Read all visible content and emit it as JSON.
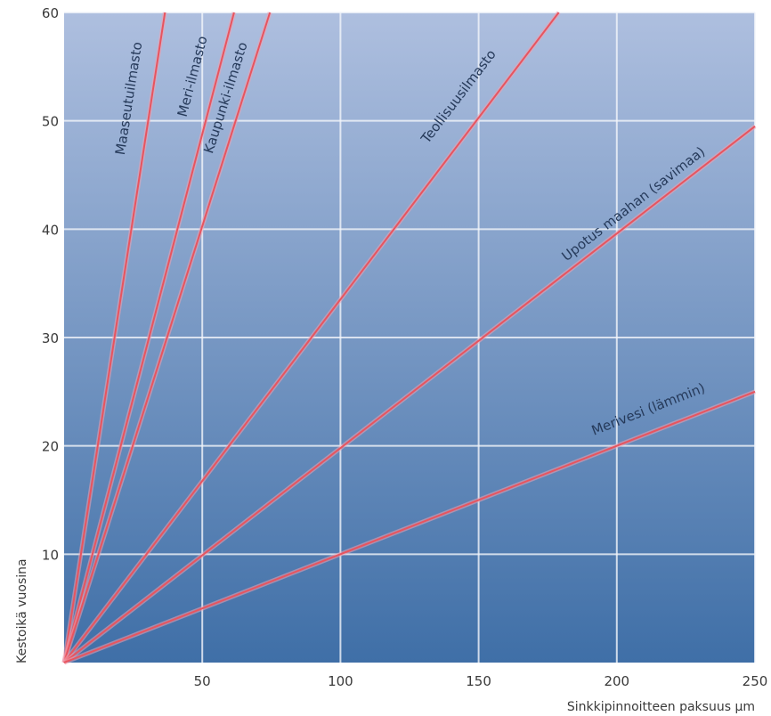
{
  "chart_data": {
    "type": "line",
    "title": "",
    "xlabel": "Sinkkipinnoitteen paksuus µm",
    "ylabel": "Kestoikä vuosina",
    "xlim": [
      0,
      250
    ],
    "ylim": [
      0,
      60
    ],
    "x_ticks": [
      50,
      100,
      150,
      200,
      250
    ],
    "y_ticks": [
      10,
      20,
      30,
      40,
      50,
      60
    ],
    "x_tick_labels": [
      "50",
      "100",
      "150",
      "200",
      "250"
    ],
    "y_tick_labels": [
      "10",
      "20",
      "30",
      "40",
      "50",
      "60"
    ],
    "grid": true,
    "colors": {
      "plot_top": "#aebfdf",
      "plot_bottom": "#3f6fa7",
      "grid": "#f2f5fa",
      "line": "#e8545e",
      "line_glow": "#f0a0b0"
    },
    "series": [
      {
        "name": "Maaseutuilmasto",
        "x": [
          0,
          36.5
        ],
        "y": [
          0,
          60
        ]
      },
      {
        "name": "Meri-ilmasto",
        "x": [
          0,
          61.5
        ],
        "y": [
          0,
          60
        ]
      },
      {
        "name": "Kaupunki-ilmasto",
        "x": [
          0,
          74.5
        ],
        "y": [
          0,
          60
        ]
      },
      {
        "name": "Teollisuusilmasto",
        "x": [
          0,
          179
        ],
        "y": [
          0,
          60
        ]
      },
      {
        "name": "Upotus maahan (savimaa)",
        "x": [
          0,
          250
        ],
        "y": [
          0,
          49.5
        ]
      },
      {
        "name": "Merivesi (lämmin)",
        "x": [
          0,
          250
        ],
        "y": [
          0,
          25
        ]
      }
    ],
    "series_label_anchor": [
      {
        "x": 25,
        "y": 52
      },
      {
        "x": 48,
        "y": 54
      },
      {
        "x": 60,
        "y": 52
      },
      {
        "x": 144,
        "y": 52
      },
      {
        "x": 207,
        "y": 42
      },
      {
        "x": 212,
        "y": 23
      }
    ]
  }
}
